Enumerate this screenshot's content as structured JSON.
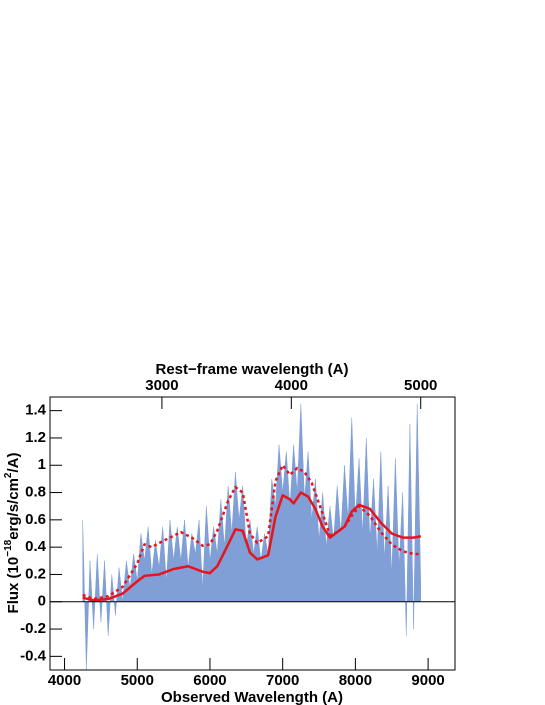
{
  "chart_data": {
    "type": "line",
    "xlabel": "Observed Wavelength (A)",
    "x2label": "Rest−frame wavelength (A)",
    "ylabel_parts": [
      "Flux (10",
      "−18",
      "erg/s/cm",
      "2",
      "/A)"
    ],
    "xlim": [
      3800,
      9370
    ],
    "xticks": [
      4000,
      5000,
      6000,
      7000,
      8000,
      9000
    ],
    "x2lim": [
      2135,
      5265
    ],
    "x2ticks": [
      3000,
      4000,
      5000
    ],
    "ylim": [
      -0.5,
      1.5
    ],
    "yticks": [
      -0.4,
      -0.2,
      0,
      0.2,
      0.4,
      0.6,
      0.8,
      1,
      1.2,
      1.4
    ],
    "zero_line": true,
    "series": [
      {
        "style": "area",
        "color": "#7f9fd6",
        "x": [
          4250,
          4300,
          4350,
          4400,
          4450,
          4500,
          4550,
          4600,
          4650,
          4700,
          4750,
          4800,
          4850,
          4900,
          4950,
          5000,
          5050,
          5100,
          5150,
          5200,
          5250,
          5300,
          5350,
          5400,
          5450,
          5500,
          5550,
          5600,
          5650,
          5700,
          5750,
          5800,
          5850,
          5900,
          5950,
          6000,
          6050,
          6100,
          6150,
          6200,
          6250,
          6300,
          6350,
          6400,
          6450,
          6500,
          6550,
          6600,
          6650,
          6700,
          6750,
          6800,
          6850,
          6900,
          6950,
          7000,
          7050,
          7100,
          7150,
          7200,
          7250,
          7300,
          7350,
          7400,
          7450,
          7500,
          7550,
          7600,
          7650,
          7700,
          7750,
          7800,
          7850,
          7900,
          7950,
          8000,
          8050,
          8100,
          8150,
          8200,
          8250,
          8300,
          8350,
          8400,
          8450,
          8500,
          8550,
          8600,
          8650,
          8700,
          8750,
          8800,
          8850,
          8900
        ],
        "values": [
          0.6,
          -0.5,
          0.3,
          -0.2,
          0.35,
          -0.15,
          0.3,
          -0.25,
          0.2,
          -0.1,
          0.25,
          0.0,
          0.3,
          0.1,
          0.35,
          0.15,
          0.5,
          0.3,
          0.55,
          0.2,
          0.45,
          0.25,
          0.55,
          0.15,
          0.6,
          0.3,
          0.55,
          0.3,
          0.6,
          0.25,
          0.5,
          0.35,
          0.6,
          0.1,
          0.7,
          0.3,
          0.55,
          0.35,
          0.75,
          0.4,
          0.85,
          0.5,
          0.95,
          0.6,
          0.85,
          0.4,
          0.6,
          0.35,
          0.55,
          0.3,
          0.5,
          0.35,
          0.9,
          0.7,
          1.15,
          0.8,
          1.1,
          0.7,
          1.15,
          0.8,
          1.45,
          0.75,
          1.1,
          0.6,
          0.9,
          0.45,
          0.8,
          0.4,
          0.7,
          0.45,
          0.85,
          0.5,
          1.0,
          0.6,
          1.35,
          0.6,
          1.05,
          0.5,
          1.2,
          0.45,
          0.9,
          0.35,
          1.1,
          0.3,
          0.85,
          0.2,
          1.05,
          0.25,
          0.8,
          -0.25,
          1.3,
          -0.2,
          1.45,
          0.1
        ]
      },
      {
        "style": "solid",
        "color": "#e8141c",
        "x": [
          4250,
          4400,
          4600,
          4800,
          5000,
          5100,
          5300,
          5500,
          5700,
          5900,
          6000,
          6100,
          6250,
          6350,
          6450,
          6550,
          6650,
          6800,
          6900,
          7000,
          7100,
          7150,
          7250,
          7350,
          7450,
          7550,
          7650,
          7750,
          7850,
          7950,
          8050,
          8200,
          8350,
          8500,
          8650,
          8800,
          8900
        ],
        "values": [
          0.03,
          0.01,
          0.02,
          0.06,
          0.15,
          0.19,
          0.2,
          0.24,
          0.26,
          0.22,
          0.21,
          0.26,
          0.42,
          0.53,
          0.52,
          0.36,
          0.31,
          0.34,
          0.62,
          0.78,
          0.75,
          0.72,
          0.8,
          0.77,
          0.68,
          0.55,
          0.47,
          0.51,
          0.55,
          0.66,
          0.71,
          0.68,
          0.58,
          0.5,
          0.47,
          0.47,
          0.48
        ]
      },
      {
        "style": "dotted",
        "color": "#e8141c",
        "x": [
          4250,
          4400,
          4600,
          4800,
          5000,
          5100,
          5200,
          5300,
          5450,
          5600,
          5750,
          5900,
          6000,
          6100,
          6250,
          6350,
          6450,
          6550,
          6650,
          6800,
          6900,
          7000,
          7100,
          7200,
          7300,
          7400,
          7500,
          7650,
          7750,
          7850,
          7950,
          8050,
          8200,
          8350,
          8500,
          8650,
          8800,
          8900
        ],
        "values": [
          0.05,
          0.02,
          0.04,
          0.11,
          0.28,
          0.42,
          0.4,
          0.43,
          0.47,
          0.51,
          0.47,
          0.41,
          0.42,
          0.52,
          0.74,
          0.84,
          0.8,
          0.5,
          0.43,
          0.48,
          0.88,
          1.0,
          0.93,
          0.98,
          0.95,
          0.87,
          0.72,
          0.49,
          0.51,
          0.55,
          0.63,
          0.7,
          0.63,
          0.51,
          0.42,
          0.37,
          0.35,
          0.35
        ]
      }
    ]
  }
}
